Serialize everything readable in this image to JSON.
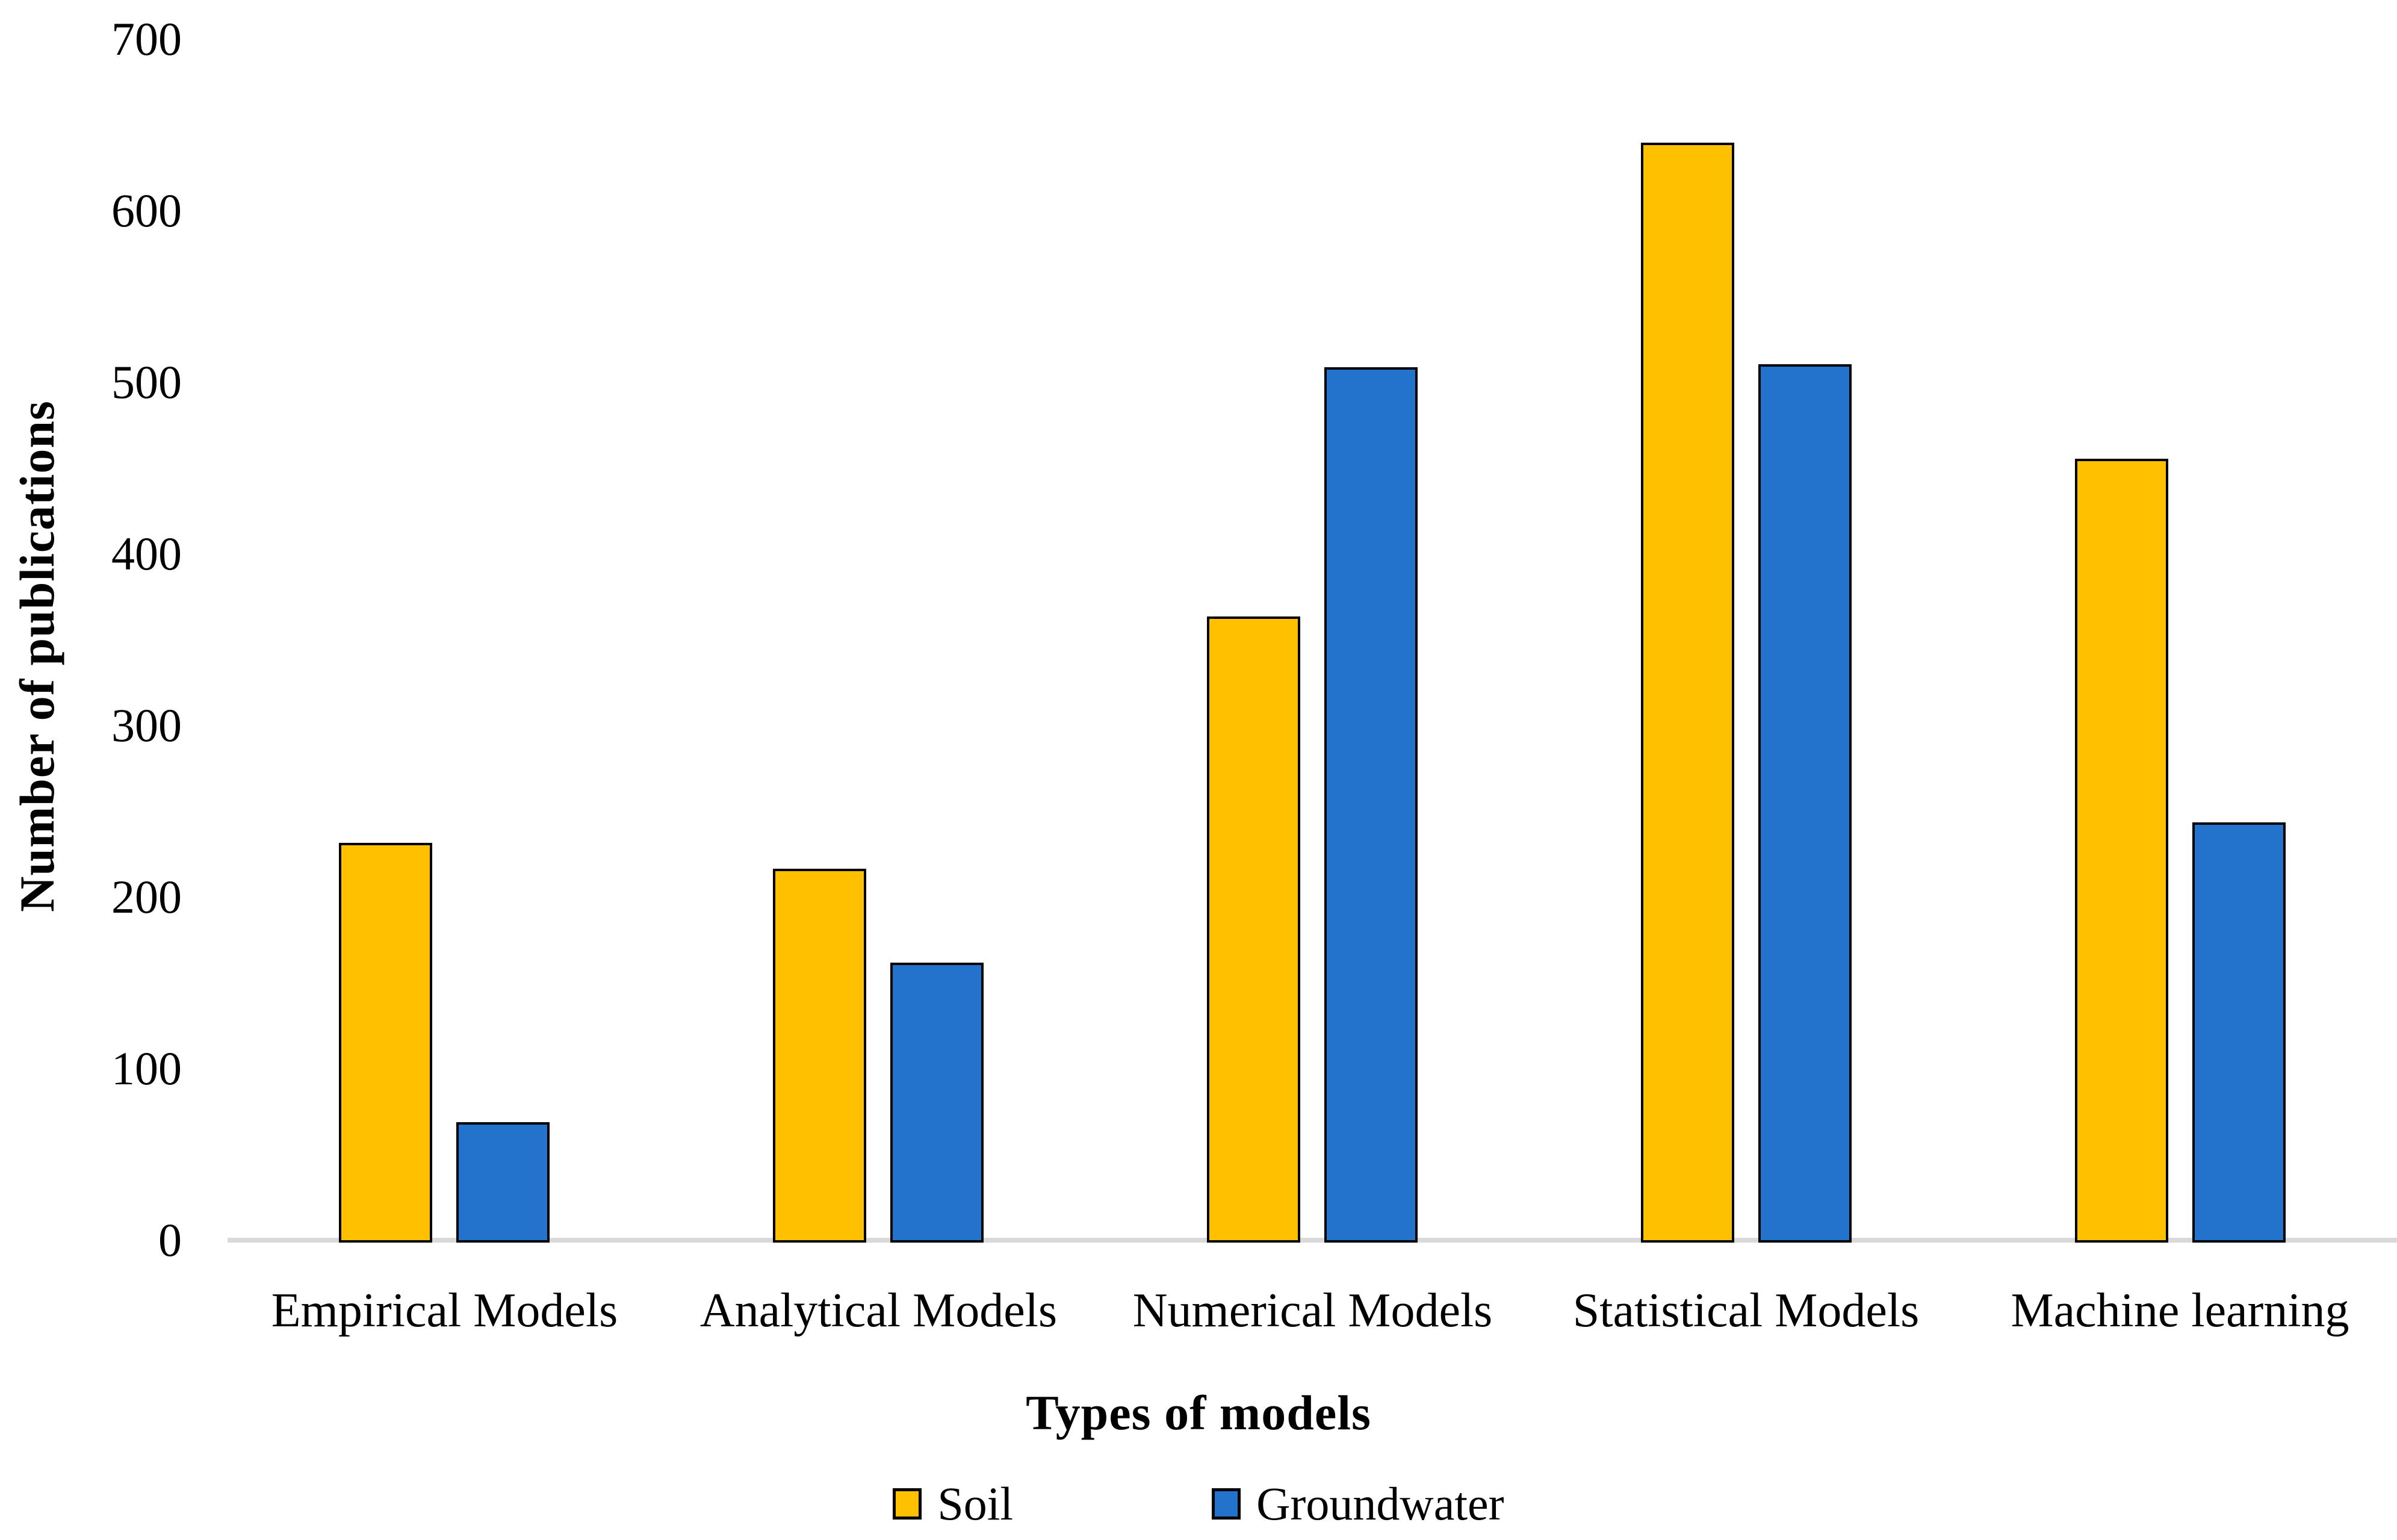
{
  "chart_data": {
    "type": "bar",
    "categories": [
      "Empirical Models",
      "Analytical Models",
      "Numerical Models",
      "Statistical Models",
      "Machine learning"
    ],
    "series": [
      {
        "name": "Soil",
        "color": "#FFC000",
        "values": [
          233,
          218,
          365,
          641,
          457
        ]
      },
      {
        "name": "Groundwater",
        "color": "#2373CD",
        "values": [
          70,
          163,
          510,
          512,
          245
        ]
      }
    ],
    "title": "",
    "xlabel": "Types of models",
    "ylabel": "Number of publications",
    "ylim": [
      0,
      700
    ],
    "yticks": [
      0,
      100,
      200,
      300,
      400,
      500,
      600,
      700
    ],
    "grid": false,
    "legend_position": "bottom",
    "bar_outline_color": "#000000",
    "baseline_color": "#D9D9D9"
  }
}
